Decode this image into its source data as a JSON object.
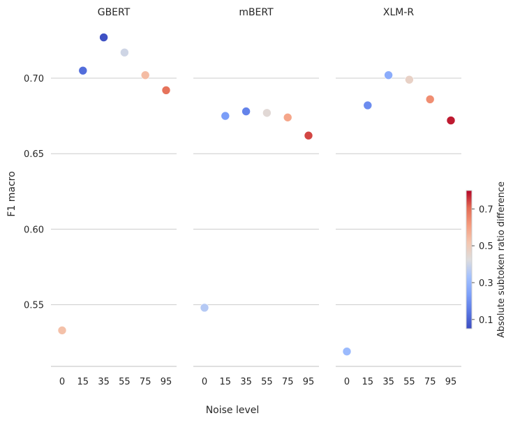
{
  "chart_data": {
    "type": "scatter",
    "ylabel": "F1 macro",
    "xlabel": "Noise level",
    "x_ticks": [
      "0",
      "15",
      "35",
      "55",
      "75",
      "95"
    ],
    "y_ticks": [
      "0.55",
      "0.60",
      "0.65",
      "0.70"
    ],
    "y_tick_values": [
      0.55,
      0.6,
      0.65,
      0.7
    ],
    "ylim": [
      0.509,
      0.728
    ],
    "colorbar": {
      "label": "Absolute subtoken ratio difference",
      "ticks": [
        "0.1",
        "0.3",
        "0.5",
        "0.7"
      ],
      "tick_values": [
        0.1,
        0.3,
        0.5,
        0.7
      ],
      "range": [
        0.05,
        0.8
      ],
      "colormap": "coolwarm"
    },
    "panels": [
      {
        "title": "GBERT",
        "points": [
          {
            "x": "0",
            "y": 0.533,
            "c": 0.53
          },
          {
            "x": "15",
            "y": 0.705,
            "c": 0.12
          },
          {
            "x": "35",
            "y": 0.727,
            "c": 0.06
          },
          {
            "x": "55",
            "y": 0.717,
            "c": 0.4
          },
          {
            "x": "75",
            "y": 0.702,
            "c": 0.54
          },
          {
            "x": "95",
            "y": 0.692,
            "c": 0.69
          }
        ]
      },
      {
        "title": "mBERT",
        "points": [
          {
            "x": "0",
            "y": 0.548,
            "c": 0.36
          },
          {
            "x": "15",
            "y": 0.675,
            "c": 0.23
          },
          {
            "x": "35",
            "y": 0.678,
            "c": 0.17
          },
          {
            "x": "55",
            "y": 0.677,
            "c": 0.44
          },
          {
            "x": "75",
            "y": 0.674,
            "c": 0.59
          },
          {
            "x": "95",
            "y": 0.662,
            "c": 0.74
          }
        ]
      },
      {
        "title": "XLM-R",
        "points": [
          {
            "x": "0",
            "y": 0.519,
            "c": 0.31
          },
          {
            "x": "15",
            "y": 0.682,
            "c": 0.19
          },
          {
            "x": "35",
            "y": 0.702,
            "c": 0.27
          },
          {
            "x": "55",
            "y": 0.699,
            "c": 0.47
          },
          {
            "x": "75",
            "y": 0.686,
            "c": 0.64
          },
          {
            "x": "95",
            "y": 0.672,
            "c": 0.78
          }
        ]
      }
    ]
  }
}
